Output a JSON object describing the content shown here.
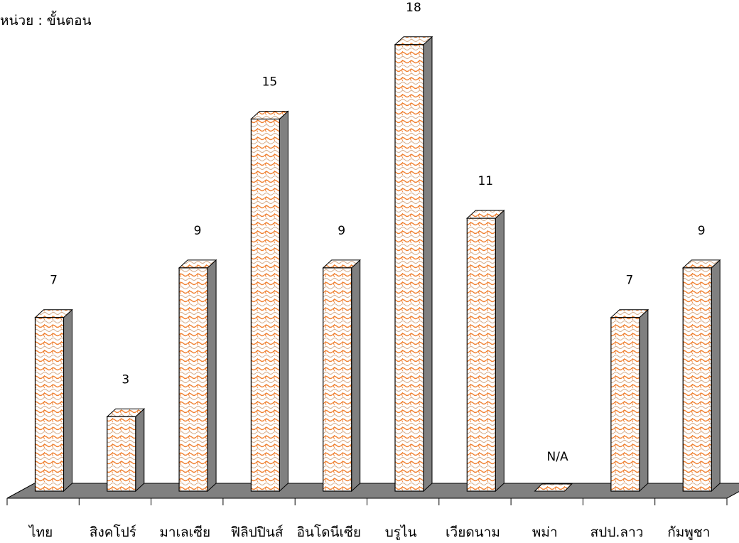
{
  "unit_label": "หน่วย : ขั้นตอน",
  "chart_data": {
    "type": "bar",
    "title": "",
    "unit": "หน่วย : ขั้นตอน",
    "categories": [
      "ไทย",
      "สิงคโปร์",
      "มาเลเซีย",
      "ฟิลิปปินส์",
      "อินโดนีเซีย",
      "บรูไน",
      "เวียดนาม",
      "พม่า",
      "สปป.ลาว",
      "กัมพูชา"
    ],
    "values": [
      7,
      3,
      9,
      15,
      9,
      18,
      11,
      null,
      7,
      9
    ],
    "data_labels": [
      "7",
      "3",
      "9",
      "15",
      "9",
      "18",
      "11",
      "N/A",
      "7",
      "9"
    ],
    "grid": false,
    "legend": "none",
    "colors": {
      "bar_fill": "#ffffff",
      "bar_pattern": "#f08030",
      "bar_side": "#808080",
      "bar_top": "#f4c8a8",
      "floor": "#808080",
      "outline": "#000000"
    }
  }
}
